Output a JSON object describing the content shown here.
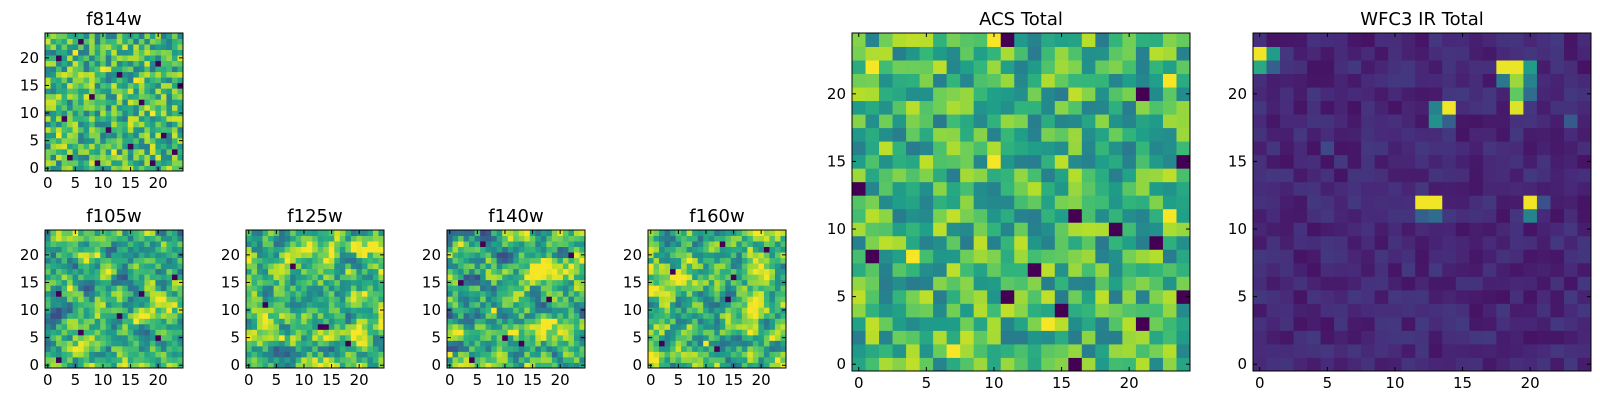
{
  "figure": {
    "colormap": "viridis",
    "colormap_stops": [
      "#440154",
      "#482878",
      "#3e4989",
      "#31688e",
      "#26828e",
      "#1f9e89",
      "#35b779",
      "#6ece58",
      "#b5de2b",
      "#fde725"
    ],
    "frame_color": "#000000"
  },
  "chart_data": [
    {
      "id": "f814w",
      "type": "heatmap",
      "title": "f814w",
      "colormap": "viridis",
      "grid_size": 25,
      "xlim": [
        0,
        24
      ],
      "ylim": [
        0,
        24
      ],
      "x_ticks": [
        0,
        5,
        10,
        15,
        20
      ],
      "y_ticks": [
        0,
        5,
        10,
        15,
        20
      ],
      "xlabel": "",
      "ylabel": "",
      "value_range": [
        0,
        1
      ],
      "texture": "noise",
      "seed": 814,
      "base": 0.68,
      "spread": 0.55,
      "min_value": 0.28,
      "smooth": 0,
      "dark_pixels": [
        [
          6,
          23
        ],
        [
          2,
          20
        ],
        [
          20,
          19
        ],
        [
          13,
          17
        ],
        [
          24,
          15
        ],
        [
          8,
          13
        ],
        [
          17,
          12
        ],
        [
          3,
          9
        ],
        [
          11,
          7
        ],
        [
          21,
          6
        ],
        [
          15,
          4
        ],
        [
          4,
          2
        ],
        [
          9,
          1
        ],
        [
          19,
          1
        ],
        [
          23,
          3
        ]
      ],
      "bright_pixels": [
        [
          5,
          21
        ],
        [
          10,
          18
        ],
        [
          16,
          16
        ],
        [
          19,
          10
        ],
        [
          2,
          6
        ],
        [
          12,
          3
        ]
      ],
      "hot_spots": []
    },
    {
      "id": "f105w",
      "type": "heatmap",
      "title": "f105w",
      "colormap": "viridis",
      "grid_size": 25,
      "xlim": [
        0,
        24
      ],
      "ylim": [
        0,
        24
      ],
      "x_ticks": [
        0,
        5,
        10,
        15,
        20
      ],
      "y_ticks": [
        0,
        5,
        10,
        15,
        20
      ],
      "xlabel": "",
      "ylabel": "",
      "value_range": [
        0,
        1
      ],
      "texture": "smooth",
      "seed": 105,
      "base": 0.66,
      "spread": 0.62,
      "min_value": 0.24,
      "smooth": 1,
      "dark_pixels": [
        [
          23,
          16
        ],
        [
          2,
          13
        ],
        [
          17,
          13
        ],
        [
          13,
          9
        ],
        [
          6,
          6
        ],
        [
          20,
          5
        ],
        [
          2,
          1
        ]
      ],
      "bright_pixels": [
        [
          9,
          20
        ],
        [
          4,
          14
        ],
        [
          16,
          8
        ]
      ],
      "hot_spots": []
    },
    {
      "id": "f125w",
      "type": "heatmap",
      "title": "f125w",
      "colormap": "viridis",
      "grid_size": 25,
      "xlim": [
        0,
        24
      ],
      "ylim": [
        0,
        24
      ],
      "x_ticks": [
        0,
        5,
        10,
        15,
        20
      ],
      "y_ticks": [
        0,
        5,
        10,
        15,
        20
      ],
      "xlabel": "",
      "ylabel": "",
      "value_range": [
        0,
        1
      ],
      "texture": "smooth",
      "seed": 125,
      "base": 0.7,
      "spread": 0.6,
      "min_value": 0.26,
      "smooth": 1,
      "dark_pixels": [
        [
          8,
          18
        ],
        [
          3,
          11
        ],
        [
          13,
          7
        ],
        [
          14,
          7
        ],
        [
          18,
          4
        ]
      ],
      "bright_pixels": [
        [
          11,
          21
        ],
        [
          6,
          5
        ],
        [
          21,
          13
        ]
      ],
      "hot_spots": []
    },
    {
      "id": "f140w",
      "type": "heatmap",
      "title": "f140w",
      "colormap": "viridis",
      "grid_size": 25,
      "xlim": [
        0,
        24
      ],
      "ylim": [
        0,
        24
      ],
      "x_ticks": [
        0,
        5,
        10,
        15,
        20
      ],
      "y_ticks": [
        0,
        5,
        10,
        15,
        20
      ],
      "xlabel": "",
      "ylabel": "",
      "value_range": [
        0,
        1
      ],
      "texture": "smooth",
      "seed": 140,
      "base": 0.68,
      "spread": 0.64,
      "min_value": 0.22,
      "smooth": 1,
      "dark_pixels": [
        [
          6,
          22
        ],
        [
          22,
          20
        ],
        [
          2,
          15
        ],
        [
          18,
          12
        ],
        [
          10,
          5
        ],
        [
          13,
          4
        ],
        [
          4,
          1
        ]
      ],
      "bright_pixels": [
        [
          15,
          18
        ],
        [
          8,
          10
        ],
        [
          12,
          6
        ],
        [
          0,
          2
        ]
      ],
      "hot_spots": []
    },
    {
      "id": "f160w",
      "type": "heatmap",
      "title": "f160w",
      "colormap": "viridis",
      "grid_size": 25,
      "xlim": [
        0,
        24
      ],
      "ylim": [
        0,
        24
      ],
      "x_ticks": [
        0,
        5,
        10,
        15,
        20
      ],
      "y_ticks": [
        0,
        5,
        10,
        15,
        20
      ],
      "xlabel": "",
      "ylabel": "",
      "value_range": [
        0,
        1
      ],
      "texture": "smooth",
      "seed": 160,
      "base": 0.7,
      "spread": 0.6,
      "min_value": 0.24,
      "smooth": 1,
      "dark_pixels": [
        [
          13,
          22
        ],
        [
          21,
          21
        ],
        [
          15,
          16
        ],
        [
          14,
          12
        ],
        [
          4,
          17
        ],
        [
          2,
          4
        ],
        [
          12,
          3
        ]
      ],
      "bright_pixels": [
        [
          7,
          19
        ],
        [
          19,
          9
        ],
        [
          10,
          4
        ]
      ],
      "hot_spots": []
    },
    {
      "id": "acs-total",
      "type": "heatmap",
      "title": "ACS Total",
      "colormap": "viridis",
      "grid_size": 25,
      "xlim": [
        0,
        24
      ],
      "ylim": [
        0,
        24
      ],
      "x_ticks": [
        0,
        5,
        10,
        15,
        20
      ],
      "y_ticks": [
        0,
        5,
        10,
        15,
        20
      ],
      "xlabel": "",
      "ylabel": "",
      "value_range": [
        0,
        1
      ],
      "texture": "noise",
      "seed": 301,
      "base": 0.66,
      "spread": 0.5,
      "min_value": 0.3,
      "smooth": 0,
      "dark_pixels": [
        [
          11,
          24
        ],
        [
          21,
          20
        ],
        [
          24,
          15
        ],
        [
          0,
          13
        ],
        [
          16,
          11
        ],
        [
          19,
          10
        ],
        [
          22,
          9
        ],
        [
          1,
          8
        ],
        [
          13,
          7
        ],
        [
          11,
          5
        ],
        [
          15,
          4
        ],
        [
          24,
          5
        ],
        [
          21,
          3
        ],
        [
          16,
          0
        ]
      ],
      "bright_pixels": [
        [
          10,
          24
        ],
        [
          1,
          22
        ],
        [
          23,
          21
        ],
        [
          10,
          15
        ],
        [
          4,
          8
        ],
        [
          14,
          3
        ],
        [
          7,
          1
        ],
        [
          23,
          11
        ]
      ],
      "hot_spots": []
    },
    {
      "id": "wfc3-ir-total",
      "type": "heatmap",
      "title": "WFC3 IR Total",
      "colormap": "viridis",
      "grid_size": 25,
      "xlim": [
        0,
        24
      ],
      "ylim": [
        0,
        24
      ],
      "x_ticks": [
        0,
        5,
        10,
        15,
        20
      ],
      "y_ticks": [
        0,
        5,
        10,
        15,
        20
      ],
      "xlabel": "",
      "ylabel": "",
      "value_range": [
        0,
        1
      ],
      "texture": "noise",
      "seed": 777,
      "base": 0.11,
      "spread": 0.12,
      "min_value": 0,
      "smooth": 0,
      "dark_pixels": [],
      "bright_pixels": [],
      "hot_spots": [
        [
          0,
          23,
          0.98
        ],
        [
          0,
          22,
          0.6
        ],
        [
          1,
          23,
          0.55
        ],
        [
          1,
          22,
          0.3
        ],
        [
          18,
          22,
          0.97
        ],
        [
          19,
          22,
          0.97
        ],
        [
          19,
          21,
          0.85
        ],
        [
          20,
          22,
          0.55
        ],
        [
          20,
          21,
          0.45
        ],
        [
          18,
          21,
          0.4
        ],
        [
          19,
          20,
          0.75
        ],
        [
          19,
          19,
          0.95
        ],
        [
          20,
          20,
          0.35
        ],
        [
          13,
          19,
          0.45
        ],
        [
          14,
          19,
          0.98
        ],
        [
          13,
          18,
          0.5
        ],
        [
          14,
          18,
          0.3
        ],
        [
          12,
          12,
          0.98
        ],
        [
          13,
          12,
          0.98
        ],
        [
          12,
          11,
          0.3
        ],
        [
          13,
          11,
          0.35
        ],
        [
          20,
          12,
          0.98
        ],
        [
          20,
          11,
          0.45
        ],
        [
          21,
          12,
          0.25
        ],
        [
          23,
          18,
          0.28
        ],
        [
          5,
          16,
          0.22
        ]
      ]
    }
  ]
}
